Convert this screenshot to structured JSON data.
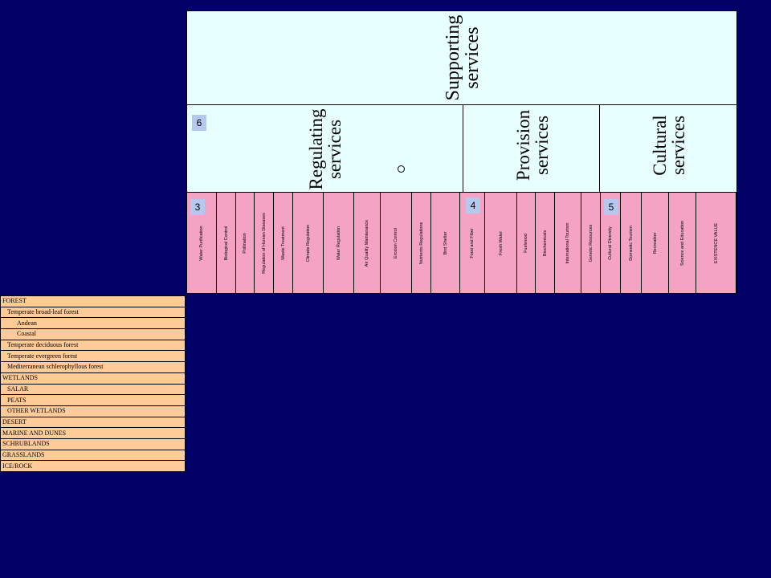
{
  "headers": {
    "supporting": "Supporting\nservices",
    "regulating": "Regulating\nservices",
    "provision": "Provision\nservices",
    "cultural": "Cultural\nservices"
  },
  "badges": {
    "regulating": "6",
    "reg_services": "3",
    "prov_services": "4",
    "cult_services": "5"
  },
  "services": [
    "Water Purification",
    "Biological Control",
    "Pollination",
    "Regulation of Human Diseases",
    "Waste Treatment",
    "Climate Regulation",
    "Water Regulation",
    "Air Quality Maintenance",
    "Erosion Control",
    "Nutrients Regulations",
    "Bird Shelter",
    "Food and Fiber",
    "Fresh Water",
    "Fuelwood",
    "Biochemicals",
    "International Tourism",
    "Genetic Resources",
    "Cultural Diversity",
    "Domestic Tourism",
    "Recreation",
    "Science and Education",
    "EXISTENCE VALUE"
  ],
  "ecosystems": [
    {
      "label": "FOREST",
      "level": 0
    },
    {
      "label": "Temperate broad-leaf forest",
      "level": 1
    },
    {
      "label": "Andean",
      "level": 2
    },
    {
      "label": "Coastal",
      "level": 2
    },
    {
      "label": "Temperate deciduous forest",
      "level": 1
    },
    {
      "label": "Temperate evergreen forest",
      "level": 1
    },
    {
      "label": "Mediterranean schlerophyllous forest",
      "level": 1
    },
    {
      "label": "WETLANDS",
      "level": 0
    },
    {
      "label": "SALAR",
      "level": 1
    },
    {
      "label": "PEATS",
      "level": 1
    },
    {
      "label": "OTHER WETLANDS",
      "level": 1
    },
    {
      "label": "DESERT",
      "level": 0
    },
    {
      "label": "MARINE AND DUNES",
      "level": 0
    },
    {
      "label": "SCHRUBLANDS",
      "level": 0
    },
    {
      "label": "GRASSLANDS",
      "level": 0
    },
    {
      "label": "ICE/ROCK",
      "level": 0
    }
  ]
}
